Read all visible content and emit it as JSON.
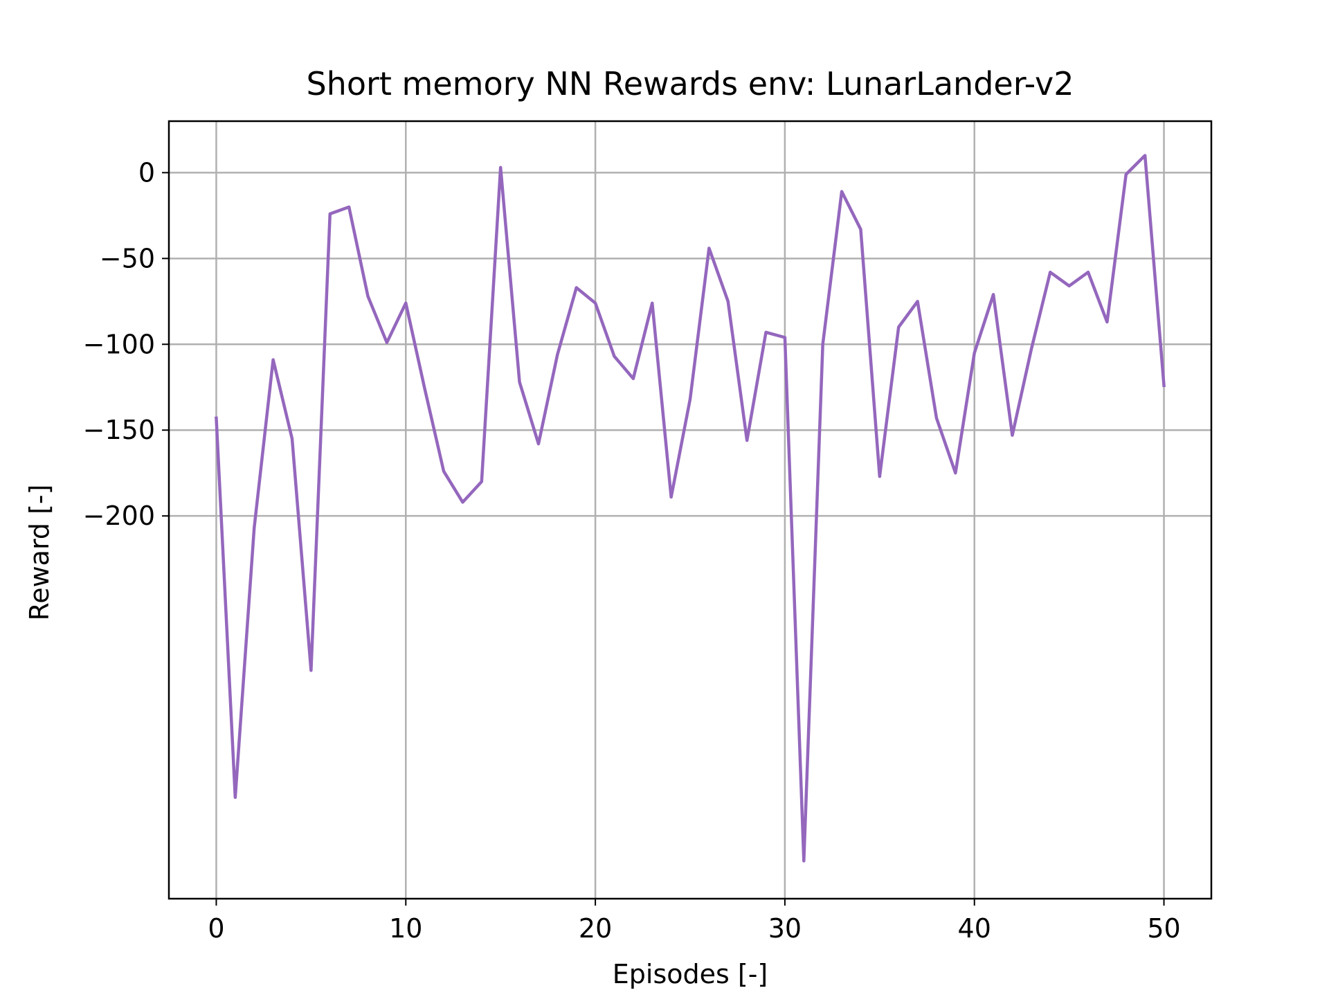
{
  "chart_data": {
    "type": "line",
    "title": "Short memory NN Rewards env: LunarLander-v2",
    "xlabel": "Episodes [-]",
    "ylabel": "Reward [-]",
    "xlim": [
      -2.5,
      52.5
    ],
    "ylim": [
      -423,
      30
    ],
    "xticks": [
      0,
      10,
      20,
      30,
      40,
      50
    ],
    "yticks": [
      0,
      -50,
      -100,
      -150,
      -200
    ],
    "ytick_labels": [
      "0",
      "−50",
      "−100",
      "−150",
      "−200"
    ],
    "grid": true,
    "series": [
      {
        "color": "#9467bd",
        "x": [
          0,
          1,
          2,
          3,
          4,
          5,
          6,
          7,
          8,
          9,
          10,
          11,
          12,
          13,
          14,
          15,
          16,
          17,
          18,
          19,
          20,
          21,
          22,
          23,
          24,
          25,
          26,
          27,
          28,
          29,
          30,
          31,
          32,
          33,
          34,
          35,
          36,
          37,
          38,
          39,
          40,
          41,
          42,
          43,
          44,
          45,
          46,
          47,
          48,
          49,
          50
        ],
        "values": [
          -143,
          -364,
          -207,
          -109,
          -155,
          -290,
          -24,
          -20,
          -72,
          -99,
          -76,
          -126,
          -174,
          -192,
          -180,
          3,
          -122,
          -158,
          -106,
          -67,
          -76,
          -107,
          -120,
          -76,
          -189,
          -132,
          -44,
          -75,
          -156,
          -93,
          -96,
          -401,
          -100,
          -11,
          -33,
          -177,
          -90,
          -75,
          -143,
          -175,
          -105,
          -71,
          -153,
          -103,
          -58,
          -66,
          -58,
          -87,
          -1,
          10,
          -124
        ]
      }
    ]
  }
}
